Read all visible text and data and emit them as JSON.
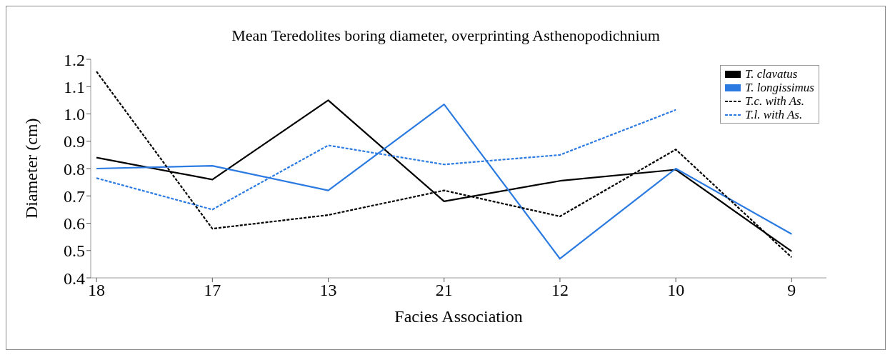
{
  "chart_data": {
    "type": "line",
    "title": "Mean Teredolites boring diameter, overprinting Asthenopodichnium",
    "xlabel": "Facies Association",
    "ylabel": "Diameter (cm)",
    "categories": [
      "18",
      "17",
      "13",
      "21",
      "12",
      "10",
      "9"
    ],
    "series": [
      {
        "name": "T. clavatus",
        "color": "#000000",
        "line_style": "solid",
        "values": [
          0.84,
          0.76,
          1.05,
          0.68,
          0.755,
          0.796,
          0.497
        ]
      },
      {
        "name": "T. longissimus",
        "color": "#2a7ae2",
        "line_style": "solid",
        "values": [
          0.8,
          0.81,
          0.72,
          1.035,
          0.47,
          0.8,
          0.56
        ]
      },
      {
        "name": "T.c. with As.",
        "color": "#000000",
        "line_style": "dashed",
        "values": [
          1.155,
          0.58,
          0.63,
          0.72,
          0.625,
          0.87,
          0.475
        ]
      },
      {
        "name": "T.l. with As.",
        "color": "#2a7ae2",
        "line_style": "dashed",
        "values": [
          0.765,
          0.65,
          0.885,
          0.815,
          0.85,
          1.015,
          null
        ]
      }
    ],
    "ylim": [
      0.4,
      1.2
    ],
    "yticks": [
      0.4,
      0.5,
      0.6,
      0.7,
      0.8,
      0.9,
      {
        "value": 1,
        "label": "1.0"
      },
      1.1,
      1.2
    ],
    "grid": false,
    "legend": "top right",
    "marker": "none"
  }
}
